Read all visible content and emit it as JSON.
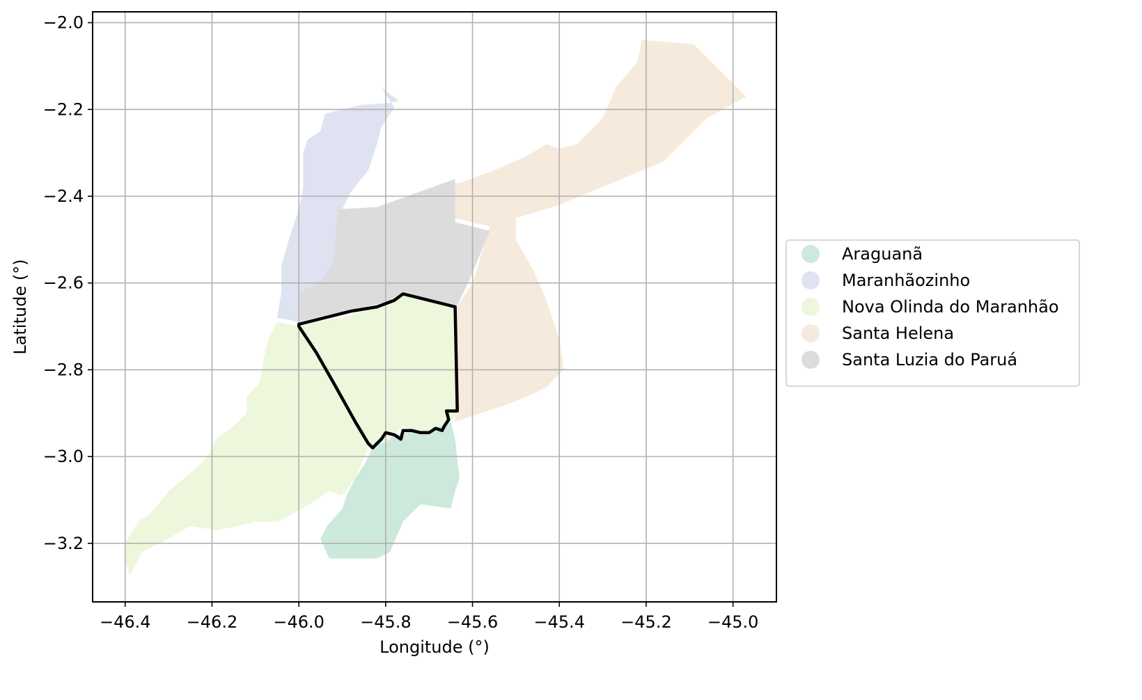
{
  "chart_data": {
    "type": "map",
    "title": "",
    "xlabel": "Longitude (°)",
    "ylabel": "Latitude (°)",
    "xlim": [
      -46.475,
      -44.9
    ],
    "ylim": [
      -3.335,
      -1.975
    ],
    "grid": true,
    "x_ticks": [
      -46.4,
      -46.2,
      -46.0,
      -45.8,
      -45.6,
      -45.4,
      -45.2,
      -45.0
    ],
    "x_tick_labels": [
      "−46.4",
      "−46.2",
      "−46.0",
      "−45.8",
      "−45.6",
      "−45.4",
      "−45.2",
      "−45.0"
    ],
    "y_ticks": [
      -2.0,
      -2.2,
      -2.4,
      -2.6,
      -2.8,
      -3.0,
      -3.2
    ],
    "y_tick_labels": [
      "−2.0",
      "−2.2",
      "−2.4",
      "−2.6",
      "−2.8",
      "−3.0",
      "−3.2"
    ],
    "legend_position": "right",
    "highlight": "Nova Olinda do Maranhão",
    "highlight_color": "#000000",
    "regions": [
      {
        "name": "Araguanã",
        "color": "#cce9dc",
        "polygon": [
          [
            -45.83,
            -2.98
          ],
          [
            -45.78,
            -2.95
          ],
          [
            -45.72,
            -2.94
          ],
          [
            -45.68,
            -2.93
          ],
          [
            -45.66,
            -2.91
          ],
          [
            -45.65,
            -2.92
          ],
          [
            -45.64,
            -2.96
          ],
          [
            -45.63,
            -3.05
          ],
          [
            -45.64,
            -3.08
          ],
          [
            -45.65,
            -3.12
          ],
          [
            -45.72,
            -3.11
          ],
          [
            -45.76,
            -3.15
          ],
          [
            -45.79,
            -3.22
          ],
          [
            -45.82,
            -3.235
          ],
          [
            -45.93,
            -3.235
          ],
          [
            -45.95,
            -3.19
          ],
          [
            -45.935,
            -3.16
          ],
          [
            -45.9,
            -3.12
          ],
          [
            -45.89,
            -3.09
          ],
          [
            -45.87,
            -3.05
          ],
          [
            -45.85,
            -3.02
          ]
        ]
      },
      {
        "name": "Maranhãozinho",
        "color": "#dfe2f0",
        "polygon": [
          [
            -45.81,
            -2.15
          ],
          [
            -45.77,
            -2.18
          ],
          [
            -45.79,
            -2.185
          ],
          [
            -45.86,
            -2.19
          ],
          [
            -45.94,
            -2.21
          ],
          [
            -45.95,
            -2.25
          ],
          [
            -45.98,
            -2.27
          ],
          [
            -45.99,
            -2.3
          ],
          [
            -45.99,
            -2.38
          ],
          [
            -46.0,
            -2.43
          ],
          [
            -46.02,
            -2.49
          ],
          [
            -46.04,
            -2.56
          ],
          [
            -46.04,
            -2.62
          ],
          [
            -46.05,
            -2.68
          ],
          [
            -46.0,
            -2.69
          ],
          [
            -45.95,
            -2.66
          ],
          [
            -45.93,
            -2.6
          ],
          [
            -45.9,
            -2.49
          ],
          [
            -45.9,
            -2.43
          ],
          [
            -45.88,
            -2.39
          ],
          [
            -45.84,
            -2.34
          ],
          [
            -45.82,
            -2.28
          ],
          [
            -45.81,
            -2.24
          ],
          [
            -45.78,
            -2.195
          ]
        ]
      },
      {
        "name": "Santa Helena",
        "color": "#f5eadb",
        "polygon": [
          [
            -45.63,
            -2.37
          ],
          [
            -45.55,
            -2.34
          ],
          [
            -45.48,
            -2.31
          ],
          [
            -45.43,
            -2.28
          ],
          [
            -45.4,
            -2.29
          ],
          [
            -45.36,
            -2.28
          ],
          [
            -45.3,
            -2.22
          ],
          [
            -45.27,
            -2.15
          ],
          [
            -45.22,
            -2.09
          ],
          [
            -45.21,
            -2.04
          ],
          [
            -45.09,
            -2.05
          ],
          [
            -44.97,
            -2.17
          ],
          [
            -45.06,
            -2.22
          ],
          [
            -45.16,
            -2.32
          ],
          [
            -45.4,
            -2.42
          ],
          [
            -45.5,
            -2.45
          ],
          [
            -45.5,
            -2.5
          ],
          [
            -45.46,
            -2.57
          ],
          [
            -45.43,
            -2.64
          ],
          [
            -45.4,
            -2.73
          ],
          [
            -45.39,
            -2.8
          ],
          [
            -45.43,
            -2.84
          ],
          [
            -45.47,
            -2.86
          ],
          [
            -45.52,
            -2.88
          ],
          [
            -45.58,
            -2.9
          ],
          [
            -45.64,
            -2.92
          ],
          [
            -45.64,
            -2.66
          ],
          [
            -45.6,
            -2.6
          ],
          [
            -45.56,
            -2.47
          ],
          [
            -45.6,
            -2.46
          ],
          [
            -45.64,
            -2.45
          ],
          [
            -45.64,
            -2.37
          ]
        ]
      },
      {
        "name": "Santa Luzia do Paruá",
        "color": "#dcdcdc",
        "polygon": [
          [
            -45.91,
            -2.43
          ],
          [
            -45.82,
            -2.425
          ],
          [
            -45.64,
            -2.36
          ],
          [
            -45.64,
            -2.46
          ],
          [
            -45.56,
            -2.48
          ],
          [
            -45.61,
            -2.6
          ],
          [
            -45.64,
            -2.66
          ],
          [
            -45.76,
            -2.625
          ],
          [
            -45.8,
            -2.645
          ],
          [
            -45.94,
            -2.675
          ],
          [
            -46.0,
            -2.69
          ],
          [
            -46.0,
            -2.62
          ],
          [
            -45.95,
            -2.6
          ],
          [
            -45.92,
            -2.55
          ]
        ]
      },
      {
        "name": "Nova Olinda do Maranhão",
        "color": "#ecf7dc",
        "polygon": [
          [
            -46.05,
            -2.69
          ],
          [
            -46.0,
            -2.7
          ],
          [
            -45.96,
            -2.69
          ],
          [
            -45.9,
            -2.68
          ],
          [
            -45.8,
            -2.65
          ],
          [
            -45.76,
            -2.62
          ],
          [
            -45.64,
            -2.655
          ],
          [
            -45.635,
            -2.9
          ],
          [
            -45.66,
            -2.93
          ],
          [
            -45.68,
            -2.93
          ],
          [
            -45.7,
            -2.94
          ],
          [
            -45.72,
            -2.945
          ],
          [
            -45.76,
            -2.93
          ],
          [
            -45.8,
            -2.97
          ],
          [
            -45.82,
            -2.97
          ],
          [
            -45.84,
            -2.98
          ],
          [
            -45.87,
            -3.05
          ],
          [
            -45.9,
            -3.09
          ],
          [
            -45.93,
            -3.08
          ],
          [
            -45.96,
            -3.1
          ],
          [
            -46.01,
            -3.13
          ],
          [
            -46.05,
            -3.15
          ],
          [
            -46.1,
            -3.15
          ],
          [
            -46.14,
            -3.16
          ],
          [
            -46.19,
            -3.17
          ],
          [
            -46.25,
            -3.16
          ],
          [
            -46.32,
            -3.2
          ],
          [
            -46.36,
            -3.22
          ],
          [
            -46.39,
            -3.275
          ],
          [
            -46.4,
            -3.24
          ],
          [
            -46.4,
            -3.2
          ],
          [
            -46.37,
            -3.15
          ],
          [
            -46.34,
            -3.13
          ],
          [
            -46.3,
            -3.08
          ],
          [
            -46.24,
            -3.03
          ],
          [
            -46.21,
            -3.0
          ],
          [
            -46.19,
            -2.96
          ],
          [
            -46.15,
            -2.93
          ],
          [
            -46.12,
            -2.9
          ],
          [
            -46.12,
            -2.86
          ],
          [
            -46.09,
            -2.83
          ],
          [
            -46.08,
            -2.77
          ],
          [
            -46.07,
            -2.73
          ]
        ]
      }
    ],
    "highlight_outline": [
      [
        -46.0,
        -2.695
      ],
      [
        -45.94,
        -2.68
      ],
      [
        -45.88,
        -2.665
      ],
      [
        -45.82,
        -2.655
      ],
      [
        -45.78,
        -2.64
      ],
      [
        -45.76,
        -2.625
      ],
      [
        -45.64,
        -2.655
      ],
      [
        -45.635,
        -2.895
      ],
      [
        -45.65,
        -2.895
      ],
      [
        -45.66,
        -2.895
      ],
      [
        -45.655,
        -2.915
      ],
      [
        -45.665,
        -2.93
      ],
      [
        -45.67,
        -2.94
      ],
      [
        -45.685,
        -2.935
      ],
      [
        -45.7,
        -2.945
      ],
      [
        -45.72,
        -2.945
      ],
      [
        -45.74,
        -2.94
      ],
      [
        -45.75,
        -2.94
      ],
      [
        -45.76,
        -2.94
      ],
      [
        -45.765,
        -2.96
      ],
      [
        -45.78,
        -2.95
      ],
      [
        -45.8,
        -2.945
      ],
      [
        -45.81,
        -2.96
      ],
      [
        -45.82,
        -2.97
      ],
      [
        -45.83,
        -2.98
      ],
      [
        -45.84,
        -2.97
      ],
      [
        -45.87,
        -2.92
      ],
      [
        -45.92,
        -2.83
      ],
      [
        -45.96,
        -2.76
      ],
      [
        -46.0,
        -2.7
      ]
    ]
  }
}
